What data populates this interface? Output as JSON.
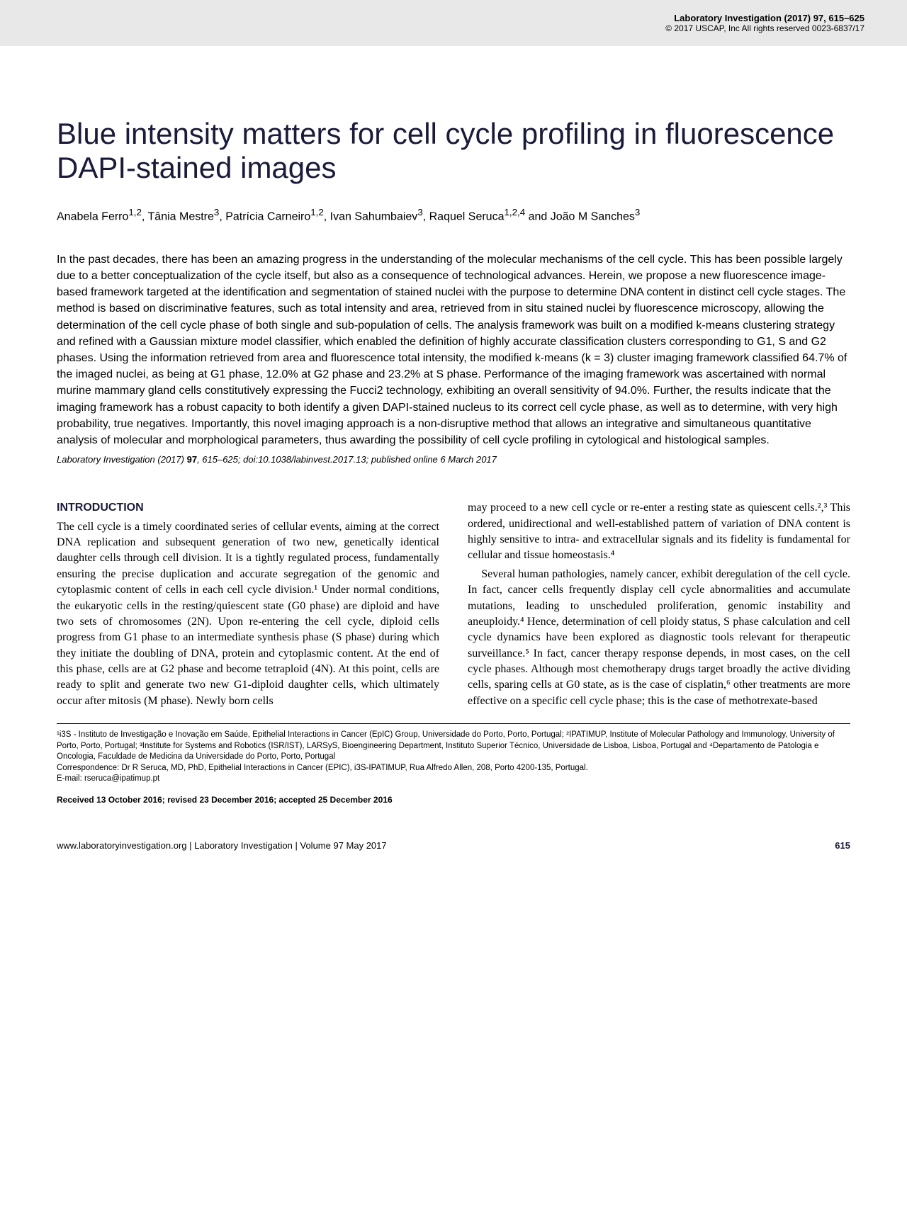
{
  "header": {
    "journal_line": "Laboratory Investigation (2017) 97, 615–625",
    "copyright_line": "© 2017 USCAP, Inc All rights reserved 0023-6837/17"
  },
  "title": "Blue intensity matters for cell cycle profiling in fluorescence DAPI-stained images",
  "authors_html": "Anabela Ferro<sup>1,2</sup>, Tânia Mestre<sup>3</sup>, Patrícia Carneiro<sup>1,2</sup>, Ivan Sahumbaiev<sup>3</sup>, Raquel Seruca<sup>1,2,4</sup> and João M Sanches<sup>3</sup>",
  "abstract": "In the past decades, there has been an amazing progress in the understanding of the molecular mechanisms of the cell cycle. This has been possible largely due to a better conceptualization of the cycle itself, but also as a consequence of technological advances. Herein, we propose a new fluorescence image-based framework targeted at the identification and segmentation of stained nuclei with the purpose to determine DNA content in distinct cell cycle stages. The method is based on discriminative features, such as total intensity and area, retrieved from in situ stained nuclei by fluorescence microscopy, allowing the determination of the cell cycle phase of both single and sub-population of cells. The analysis framework was built on a modified k-means clustering strategy and refined with a Gaussian mixture model classifier, which enabled the definition of highly accurate classification clusters corresponding to G1, S and G2 phases. Using the information retrieved from area and fluorescence total intensity, the modified k-means (k = 3) cluster imaging framework classified 64.7% of the imaged nuclei, as being at G1 phase, 12.0% at G2 phase and 23.2% at S phase. Performance of the imaging framework was ascertained with normal murine mammary gland cells constitutively expressing the Fucci2 technology, exhibiting an overall sensitivity of 94.0%. Further, the results indicate that the imaging framework has a robust capacity to both identify a given DAPI-stained nucleus to its correct cell cycle phase, as well as to determine, with very high probability, true negatives. Importantly, this novel imaging approach is a non-disruptive method that allows an integrative and simultaneous quantitative analysis of molecular and morphological parameters, thus awarding the possibility of cell cycle profiling in cytological and histological samples.",
  "citation": {
    "journal": "Laboratory Investigation",
    "year_vol": "(2017)",
    "volume": "97",
    "pages": ", 615–625; doi:10.1038/labinvest.2017.13; published online 6 March 2017"
  },
  "introduction_heading": "INTRODUCTION",
  "col1_para1": "The cell cycle is a timely coordinated series of cellular events, aiming at the correct DNA replication and subsequent generation of two new, genetically identical daughter cells through cell division. It is a tightly regulated process, fundamentally ensuring the precise duplication and accurate segregation of the genomic and cytoplasmic content of cells in each cell cycle division.¹ Under normal conditions, the eukaryotic cells in the resting/quiescent state (G0 phase) are diploid and have two sets of chromosomes (2N). Upon re-entering the cell cycle, diploid cells progress from G1 phase to an intermediate synthesis phase (S phase) during which they initiate the doubling of DNA, protein and cytoplasmic content. At the end of this phase, cells are at G2 phase and become tetraploid (4N). At this point, cells are ready to split and generate two new G1-diploid daughter cells, which ultimately occur after mitosis (M phase). Newly born cells",
  "col2_para1": "may proceed to a new cell cycle or re-enter a resting state as quiescent cells.²,³ This ordered, unidirectional and well-established pattern of variation of DNA content is highly sensitive to intra- and extracellular signals and its fidelity is fundamental for cellular and tissue homeostasis.⁴",
  "col2_para2": "Several human pathologies, namely cancer, exhibit deregulation of the cell cycle. In fact, cancer cells frequently display cell cycle abnormalities and accumulate mutations, leading to unscheduled proliferation, genomic instability and aneuploidy.⁴ Hence, determination of cell ploidy status, S phase calculation and cell cycle dynamics have been explored as diagnostic tools relevant for therapeutic surveillance.⁵ In fact, cancer therapy response depends, in most cases, on the cell cycle phases. Although most chemotherapy drugs target broadly the active dividing cells, sparing cells at G0 state, as is the case of cisplatin,⁶ other treatments are more effective on a specific cell cycle phase; this is the case of methotrexate-based",
  "affiliations": "¹i3S - Instituto de Investigação e Inovação em Saúde, Epithelial Interactions in Cancer (EpIC) Group, Universidade do Porto, Porto, Portugal; ²IPATIMUP, Institute of Molecular Pathology and Immunology, University of Porto, Porto, Portugal; ³Institute for Systems and Robotics (ISR/IST), LARSyS, Bioengineering Department, Instituto Superior Técnico, Universidade de Lisboa, Lisboa, Portugal and ⁴Departamento de Patologia e Oncologia, Faculdade de Medicina da Universidade do Porto, Porto, Portugal",
  "correspondence": "Correspondence: Dr R Seruca, MD, PhD, Epithelial Interactions in Cancer (EPIC), i3S-IPATIMUP, Rua Alfredo Allen, 208, Porto 4200-135, Portugal.",
  "email": "E-mail: rseruca@ipatimup.pt",
  "received": "Received 13 October 2016; revised 23 December 2016; accepted 25 December 2016",
  "footer": {
    "left": "www.laboratoryinvestigation.org | Laboratory Investigation | Volume 97 May 2017",
    "page": "615"
  }
}
